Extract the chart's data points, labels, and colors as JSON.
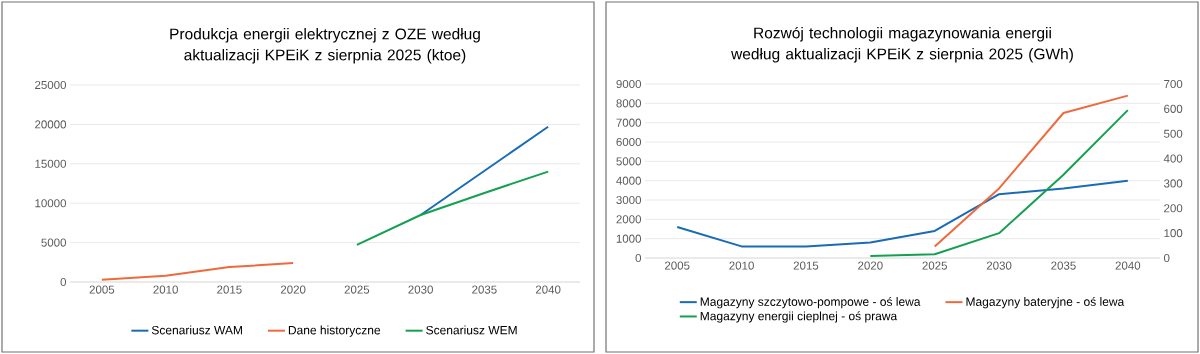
{
  "chart_data": [
    {
      "type": "line",
      "title": "Produkcja energii elektrycznej z OZE według aktualizacji KPEiK z sierpnia 2025 (ktoe)",
      "categories": [
        "2005",
        "2010",
        "2015",
        "2020",
        "2025",
        "2030",
        "2035",
        "2040"
      ],
      "series": [
        {
          "name": "Scenariusz WAM",
          "color": "#1a6bb5",
          "values": [
            null,
            null,
            null,
            null,
            null,
            8500,
            14100,
            19700
          ]
        },
        {
          "name": "Dane historyczne",
          "color": "#ee6a3c",
          "values": [
            300,
            800,
            1900,
            2400,
            null,
            null,
            null,
            null
          ]
        },
        {
          "name": "Scenariusz WEM",
          "color": "#14a050",
          "values": [
            null,
            null,
            null,
            null,
            4700,
            8500,
            11300,
            14000
          ]
        }
      ],
      "ylim": [
        0,
        25000
      ],
      "yticks": [
        0,
        5000,
        10000,
        15000,
        20000,
        25000
      ],
      "grid": "y",
      "legend": "bottom"
    },
    {
      "type": "line",
      "title": "Rozwój technologii magazynowania energii według aktualizacji KPEiK z sierpnia 2025 (GWh)",
      "categories": [
        "2005",
        "2010",
        "2015",
        "2020",
        "2025",
        "2030",
        "2035",
        "2040"
      ],
      "series": [
        {
          "name": "Magazyny szczytowo-pompowe - oś lewa",
          "color": "#1a6bb5",
          "values": [
            1600,
            600,
            600,
            800,
            1400,
            3300,
            3600,
            4000
          ]
        },
        {
          "name": "Magazyny bateryjne - oś lewa",
          "color": "#ee6a3c",
          "values": [
            null,
            null,
            null,
            null,
            600,
            3600,
            7500,
            8400
          ]
        },
        {
          "name": "Magazyny energii cieplnej - oś prawa",
          "color": "#14a050",
          "axis": "y2",
          "values": [
            null,
            null,
            null,
            8,
            15,
            100,
            335,
            595
          ]
        }
      ],
      "ylim": [
        0,
        9000
      ],
      "yticks": [
        0,
        1000,
        2000,
        3000,
        4000,
        5000,
        6000,
        7000,
        8000,
        9000
      ],
      "y2lim": [
        0,
        700
      ],
      "y2ticks": [
        0,
        100,
        200,
        300,
        400,
        500,
        600,
        700
      ],
      "grid": "y",
      "legend": "bottom"
    }
  ]
}
